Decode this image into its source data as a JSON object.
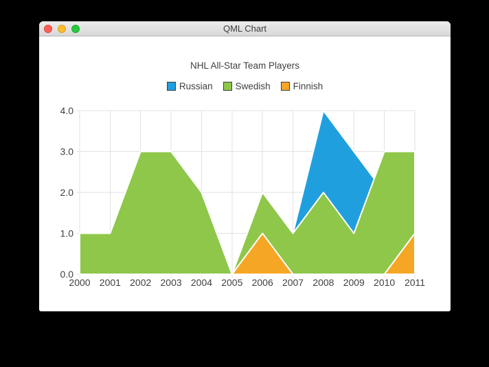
{
  "window": {
    "title": "QML Chart",
    "controls": [
      "close",
      "minimize",
      "zoom"
    ]
  },
  "chart_data": {
    "type": "area",
    "title": "NHL All-Star Team Players",
    "x": [
      2000,
      2001,
      2002,
      2003,
      2004,
      2005,
      2006,
      2007,
      2008,
      2009,
      2010,
      2011
    ],
    "x_ticks": [
      "2000",
      "2001",
      "2002",
      "2003",
      "2004",
      "2005",
      "2006",
      "2007",
      "2008",
      "2009",
      "2010",
      "2011"
    ],
    "y_ticks": [
      "0.0",
      "1.0",
      "2.0",
      "3.0",
      "4.0"
    ],
    "xlim": [
      2000,
      2011
    ],
    "ylim": [
      0,
      4
    ],
    "grid": true,
    "legend_position": "top",
    "series": [
      {
        "name": "Russian",
        "color": "#209fdf",
        "values": [
          1,
          1,
          1,
          1,
          1,
          0,
          1,
          1,
          4,
          3,
          2,
          1
        ]
      },
      {
        "name": "Swedish",
        "color": "#8fc74a",
        "values": [
          1,
          1,
          3,
          3,
          2,
          0,
          2,
          1,
          2,
          1,
          3,
          3
        ]
      },
      {
        "name": "Finnish",
        "color": "#f6a625",
        "values": [
          0,
          0,
          0,
          0,
          0,
          0,
          1,
          0,
          0,
          0,
          0,
          1
        ]
      }
    ],
    "area_border_color": "#ffffff",
    "grid_color": "#e2e2e2",
    "label_color": "#404040"
  }
}
